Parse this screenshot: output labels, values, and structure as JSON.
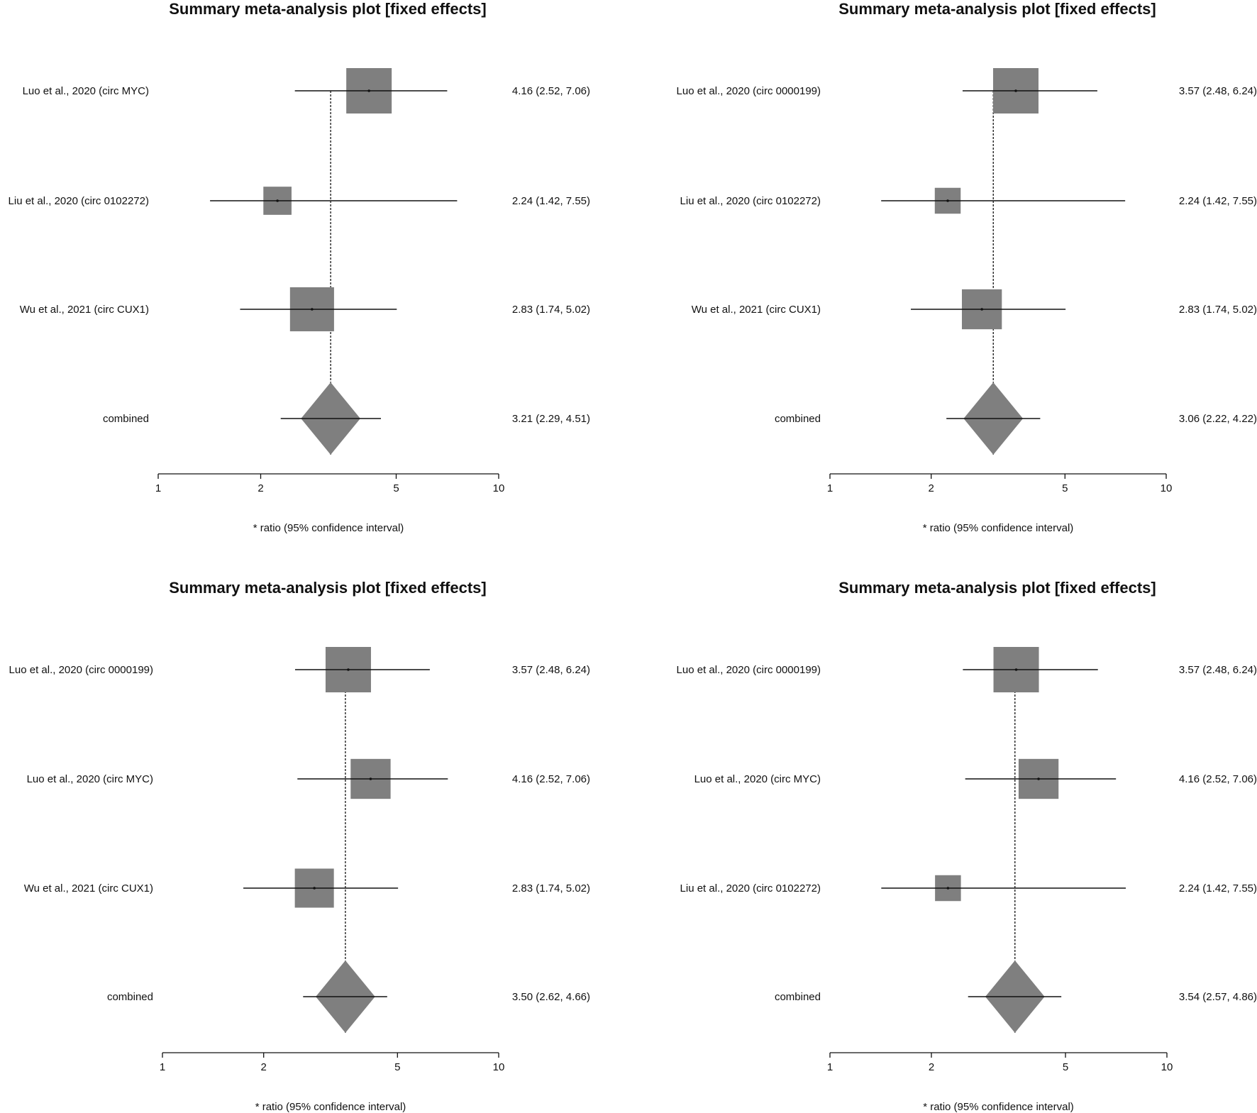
{
  "colors": {
    "marker": "#7f7f7f",
    "line": "#111111",
    "background": "#ffffff"
  },
  "chart_data": [
    {
      "type": "forest",
      "title": "Summary meta-analysis plot [fixed effects]",
      "xlabel": "* ratio (95% confidence interval)",
      "xscale": "log",
      "xlim": [
        1,
        10
      ],
      "ticks": [
        1,
        2,
        5,
        10
      ],
      "tick_labels": [
        "1",
        "2",
        "5",
        "10"
      ],
      "studies": [
        {
          "label": "Luo et al., 2020 (circ MYC)",
          "estimate": 4.16,
          "lower": 2.52,
          "upper": 7.06,
          "ci_text": "4.16 (2.52, 7.06)",
          "weight": 1.0
        },
        {
          "label": "Liu et al., 2020 (circ 0102272)",
          "estimate": 2.24,
          "lower": 1.42,
          "upper": 7.55,
          "ci_text": "2.24 (1.42, 7.55)",
          "weight": 0.62
        },
        {
          "label": "Wu et al., 2021 (circ CUX1)",
          "estimate": 2.83,
          "lower": 1.74,
          "upper": 5.02,
          "ci_text": "2.83 (1.74, 5.02)",
          "weight": 0.97
        }
      ],
      "combined": {
        "label": "combined",
        "estimate": 3.21,
        "lower": 2.29,
        "upper": 4.51,
        "ci_text": "3.21 (2.29, 4.51)"
      }
    },
    {
      "type": "forest",
      "title": "Summary meta-analysis plot [fixed effects]",
      "xlabel": "* ratio (95% confidence interval)",
      "xscale": "log",
      "xlim": [
        1,
        10
      ],
      "ticks": [
        1,
        2,
        5,
        10
      ],
      "tick_labels": [
        "1",
        "2",
        "5",
        "10"
      ],
      "studies": [
        {
          "label": "Luo et al., 2020 (circ 0000199)",
          "estimate": 3.57,
          "lower": 2.48,
          "upper": 6.24,
          "ci_text": "3.57 (2.48, 6.24)",
          "weight": 1.0
        },
        {
          "label": "Liu et al., 2020 (circ 0102272)",
          "estimate": 2.24,
          "lower": 1.42,
          "upper": 7.55,
          "ci_text": "2.24 (1.42, 7.55)",
          "weight": 0.57
        },
        {
          "label": "Wu et al., 2021 (circ CUX1)",
          "estimate": 2.83,
          "lower": 1.74,
          "upper": 5.02,
          "ci_text": "2.83 (1.74, 5.02)",
          "weight": 0.88
        }
      ],
      "combined": {
        "label": "combined",
        "estimate": 3.06,
        "lower": 2.22,
        "upper": 4.22,
        "ci_text": "3.06 (2.22, 4.22)"
      }
    },
    {
      "type": "forest",
      "title": "Summary meta-analysis plot [fixed effects]",
      "xlabel": "* ratio (95% confidence interval)",
      "xscale": "log",
      "xlim": [
        1,
        10
      ],
      "ticks": [
        1,
        2,
        5,
        10
      ],
      "tick_labels": [
        "1",
        "2",
        "5",
        "10"
      ],
      "studies": [
        {
          "label": "Luo et al., 2020 (circ 0000199)",
          "estimate": 3.57,
          "lower": 2.48,
          "upper": 6.24,
          "ci_text": "3.57 (2.48, 6.24)",
          "weight": 1.0
        },
        {
          "label": "Luo et al., 2020 (circ MYC)",
          "estimate": 4.16,
          "lower": 2.52,
          "upper": 7.06,
          "ci_text": "4.16 (2.52, 7.06)",
          "weight": 0.88
        },
        {
          "label": "Wu et al., 2021 (circ CUX1)",
          "estimate": 2.83,
          "lower": 1.74,
          "upper": 5.02,
          "ci_text": "2.83 (1.74, 5.02)",
          "weight": 0.86
        }
      ],
      "combined": {
        "label": "combined",
        "estimate": 3.5,
        "lower": 2.62,
        "upper": 4.66,
        "ci_text": "3.50 (2.62, 4.66)"
      }
    },
    {
      "type": "forest",
      "title": "Summary meta-analysis plot [fixed effects]",
      "xlabel": "* ratio (95% confidence interval)",
      "xscale": "log",
      "xlim": [
        1,
        10
      ],
      "ticks": [
        1,
        2,
        5,
        10
      ],
      "tick_labels": [
        "1",
        "2",
        "5",
        "10"
      ],
      "studies": [
        {
          "label": "Luo et al., 2020 (circ 0000199)",
          "estimate": 3.57,
          "lower": 2.48,
          "upper": 6.24,
          "ci_text": "3.57 (2.48, 6.24)",
          "weight": 1.0
        },
        {
          "label": "Luo et al., 2020 (circ MYC)",
          "estimate": 4.16,
          "lower": 2.52,
          "upper": 7.06,
          "ci_text": "4.16 (2.52, 7.06)",
          "weight": 0.88
        },
        {
          "label": "Liu et al., 2020 (circ 0102272)",
          "estimate": 2.24,
          "lower": 1.42,
          "upper": 7.55,
          "ci_text": "2.24 (1.42, 7.55)",
          "weight": 0.57
        }
      ],
      "combined": {
        "label": "combined",
        "estimate": 3.54,
        "lower": 2.57,
        "upper": 4.86,
        "ci_text": "3.54 (2.57, 4.86)"
      }
    }
  ]
}
